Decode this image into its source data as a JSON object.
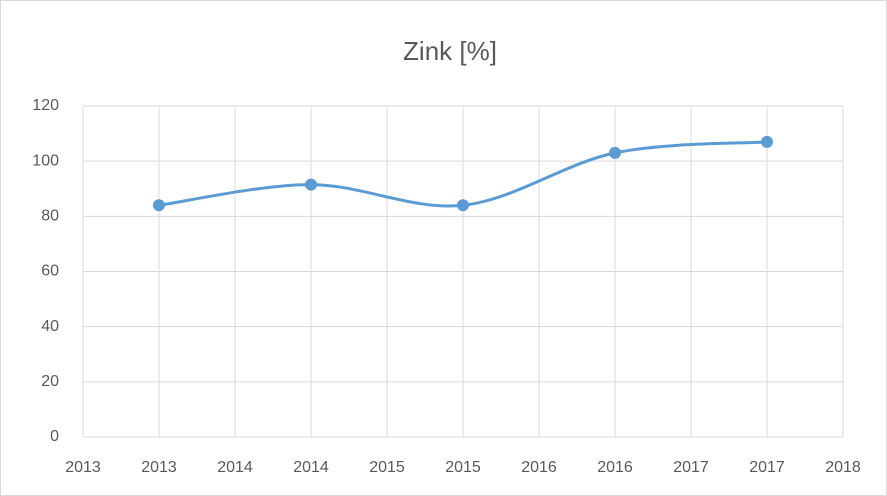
{
  "chart_data": {
    "type": "line",
    "title": "Zink [%]",
    "x": [
      2013.5,
      2014.5,
      2015.5,
      2016.5,
      2017.5
    ],
    "series": [
      {
        "name": "Zink [%]",
        "color": "#5b9bd5",
        "values": [
          84,
          91.5,
          84,
          103,
          107
        ]
      }
    ],
    "xlim": [
      2013,
      2018
    ],
    "xticks": [
      {
        "value": 2013,
        "label": "2013"
      },
      {
        "value": 2013.5,
        "label": "2013"
      },
      {
        "value": 2014,
        "label": "2014"
      },
      {
        "value": 2014.5,
        "label": "2014"
      },
      {
        "value": 2015,
        "label": "2015"
      },
      {
        "value": 2015.5,
        "label": "2015"
      },
      {
        "value": 2016,
        "label": "2016"
      },
      {
        "value": 2016.5,
        "label": "2016"
      },
      {
        "value": 2017,
        "label": "2017"
      },
      {
        "value": 2017.5,
        "label": "2017"
      },
      {
        "value": 2018,
        "label": "2018"
      }
    ],
    "ylim": [
      0,
      120
    ],
    "yticks": [
      0,
      20,
      40,
      60,
      80,
      100,
      120
    ],
    "grid": true,
    "smooth": true
  }
}
